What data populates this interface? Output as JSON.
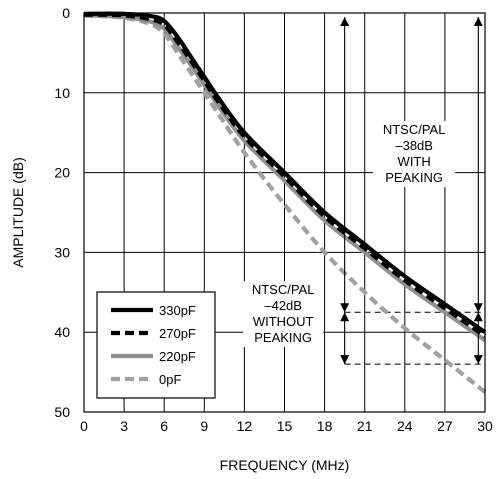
{
  "chart_data": {
    "type": "line",
    "title": "",
    "xlabel": "FREQUENCY (MHz)",
    "ylabel": "AMPLITUDE (dB)",
    "xlim": [
      0,
      30
    ],
    "ylim": [
      0,
      50
    ],
    "y_inverted": true,
    "x_ticks": [
      0,
      3,
      6,
      9,
      12,
      15,
      18,
      21,
      24,
      27,
      30
    ],
    "y_ticks": [
      0,
      10,
      20,
      30,
      40,
      50
    ],
    "grid": true,
    "legend_position": "bottom-left",
    "series": [
      {
        "name": "330pF",
        "color": "#000000",
        "style": "solid",
        "x": [
          0,
          3,
          5,
          6,
          7,
          8,
          9,
          10,
          12,
          15,
          18,
          21,
          24,
          27,
          30
        ],
        "y": [
          0.1,
          0.1,
          0.4,
          1.0,
          3.0,
          5.5,
          8.0,
          10.5,
          15.0,
          20.0,
          25.0,
          29.0,
          33.0,
          36.5,
          40.0
        ]
      },
      {
        "name": "270pF",
        "color": "#000000",
        "style": "dashed",
        "x": [
          0,
          3,
          5,
          6,
          7,
          8,
          9,
          10,
          12,
          15,
          18,
          21,
          24,
          27,
          30
        ],
        "y": [
          0.2,
          0.3,
          0.8,
          1.5,
          3.6,
          6.0,
          8.5,
          11.0,
          15.5,
          20.5,
          25.5,
          29.5,
          33.5,
          37.0,
          40.5
        ]
      },
      {
        "name": "220pF",
        "color": "#909090",
        "style": "solid",
        "x": [
          0,
          3,
          5,
          6,
          7,
          8,
          9,
          10,
          12,
          15,
          18,
          21,
          24,
          27,
          30
        ],
        "y": [
          0.3,
          0.5,
          1.1,
          2.0,
          4.2,
          6.5,
          9.0,
          11.5,
          16.0,
          21.0,
          26.0,
          30.0,
          34.0,
          37.5,
          41.0
        ]
      },
      {
        "name": "0pF",
        "color": "#a0a0a0",
        "style": "dashed",
        "x": [
          0,
          3,
          5,
          6,
          7,
          8,
          9,
          10,
          12,
          15,
          18,
          21,
          24,
          27,
          30
        ],
        "y": [
          0.3,
          0.6,
          1.4,
          2.6,
          5.0,
          7.5,
          10.0,
          12.5,
          17.5,
          24.0,
          30.0,
          35.0,
          39.5,
          43.5,
          47.5
        ]
      }
    ],
    "reference_lines_db": [
      37.5,
      44
    ],
    "arrows": [
      {
        "x": 19.5,
        "y_from": 0.5,
        "y_to": 37.5
      },
      {
        "x": 29.5,
        "y_from": 0.5,
        "y_to": 37.5
      },
      {
        "x": 19.5,
        "y_from": 37.5,
        "y_to": 44
      },
      {
        "x": 29.5,
        "y_from": 37.5,
        "y_to": 44
      }
    ],
    "annotations": [
      {
        "lines": [
          "NTSC/PAL",
          "–38dB",
          "WITH",
          "PEAKING"
        ]
      },
      {
        "lines": [
          "NTSC/PAL",
          "–42dB",
          "WITHOUT",
          "PEAKING"
        ]
      }
    ]
  }
}
